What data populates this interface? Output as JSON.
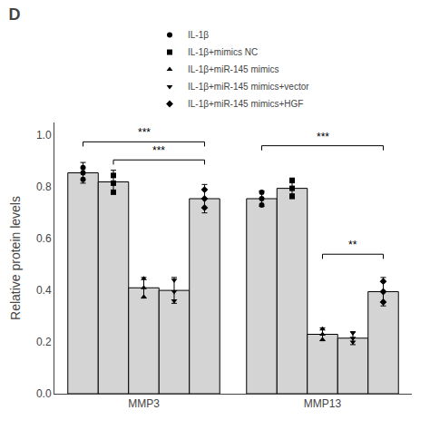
{
  "chart_data": {
    "type": "bar",
    "title": "D",
    "categories": [
      "MMP3",
      "MMP13"
    ],
    "color": "#d4d4d4",
    "ylabel": "Relative protein levels",
    "ylim": [
      0,
      1.05
    ],
    "yticks": [
      {
        "value": 0.0,
        "label": "0.0"
      },
      0.2,
      0.4,
      0.6,
      0.8,
      {
        "value": 1.0,
        "label": "1.0"
      }
    ],
    "grid": false,
    "legend": "top",
    "series": [
      {
        "name": "IL-1β",
        "marker": "circle",
        "values": [
          0.855,
          0.755
        ],
        "errors": [
          0.04,
          0.03
        ],
        "dots": [
          [
            0.83,
            0.855,
            0.875
          ],
          [
            0.73,
            0.755,
            0.78
          ]
        ]
      },
      {
        "name": "IL-1β+mimics NC",
        "marker": "square",
        "values": [
          0.82,
          0.795
        ],
        "errors": [
          0.045,
          0.04
        ],
        "dots": [
          [
            0.78,
            0.815,
            0.845
          ],
          [
            0.765,
            0.795,
            0.825
          ]
        ]
      },
      {
        "name": "IL-1β+miR-145 mimics",
        "marker": "triangle-up",
        "values": [
          0.41,
          0.23
        ],
        "errors": [
          0.04,
          0.025
        ],
        "dots": [
          [
            0.375,
            0.41,
            0.445
          ],
          [
            0.21,
            0.23,
            0.25
          ]
        ]
      },
      {
        "name": "IL-1β+miR-145 mimics+vector",
        "marker": "triangle-down",
        "values": [
          0.4,
          0.215
        ],
        "errors": [
          0.05,
          0.025
        ],
        "dots": [
          [
            0.36,
            0.395,
            0.44
          ],
          [
            0.2,
            0.215,
            0.235
          ]
        ]
      },
      {
        "name": "IL-1β+miR-145 mimics+HGF",
        "marker": "diamond",
        "values": [
          0.755,
          0.395
        ],
        "errors": [
          0.055,
          0.055
        ],
        "dots": [
          [
            0.72,
            0.755,
            0.79
          ],
          [
            0.355,
            0.395,
            0.435
          ]
        ]
      }
    ],
    "brackets": [
      {
        "category": "MMP3",
        "from": "IL-1β",
        "to": "IL-1β+miR-145 mimics+HGF",
        "y": 0.975,
        "label": "***"
      },
      {
        "category": "MMP3",
        "from": "IL-1β+mimics NC",
        "to": "IL-1β+miR-145 mimics+HGF",
        "y": 0.905,
        "label": "***"
      },
      {
        "category": "MMP13",
        "from": "IL-1β",
        "to": "IL-1β+miR-145 mimics+HGF",
        "y": 0.96,
        "label": "***"
      },
      {
        "category": "MMP13",
        "from": "IL-1β+miR-145 mimics",
        "to": "IL-1β+miR-145 mimics+HGF",
        "y": 0.54,
        "label": "**"
      }
    ]
  }
}
